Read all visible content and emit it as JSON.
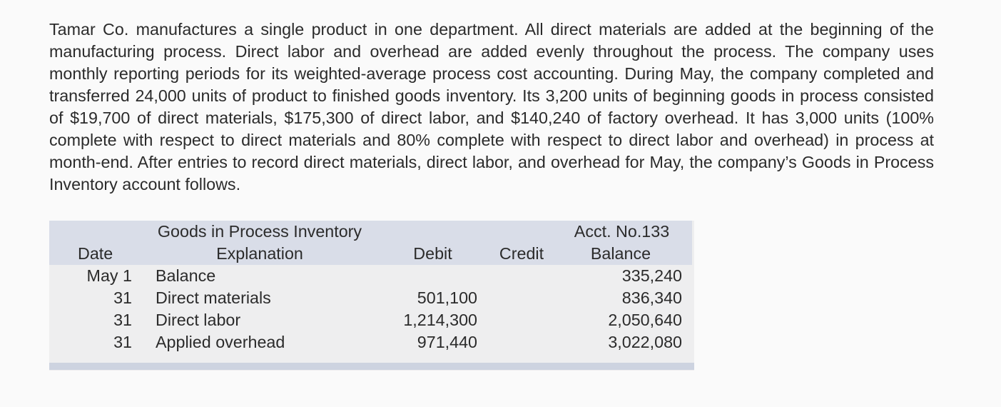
{
  "problem_text": "Tamar Co. manufactures a single product in one department. All direct materials are added at the beginning of the manufacturing process. Direct labor and overhead are added evenly throughout the process. The company uses monthly reporting periods for its weighted-average process cost accounting. During May, the company completed and transferred 24,000 units of product to finished goods inventory. Its 3,200 units of beginning goods in process consisted of $19,700 of direct materials, $175,300 of direct labor, and $140,240 of factory overhead. It has 3,000 units (100% complete with respect to direct materials and 80% complete with respect to direct labor and overhead) in process at month-end. After entries to record direct materials, direct labor, and overhead for May, the company’s Goods in Process Inventory account follows.",
  "ledger": {
    "account_title": "Goods in Process Inventory",
    "account_number": "Acct. No.133",
    "headers": {
      "date": "Date",
      "explanation": "Explanation",
      "debit": "Debit",
      "credit": "Credit",
      "balance": "Balance"
    },
    "rows": [
      {
        "date": "May 1",
        "explanation": "Balance",
        "debit": "",
        "credit": "",
        "balance": "335,240"
      },
      {
        "date": "31",
        "explanation": "Direct materials",
        "debit": "501,100",
        "credit": "",
        "balance": "836,340"
      },
      {
        "date": "31",
        "explanation": "Direct labor",
        "debit": "1,214,300",
        "credit": "",
        "balance": "2,050,640"
      },
      {
        "date": "31",
        "explanation": "Applied overhead",
        "debit": "971,440",
        "credit": "",
        "balance": "3,022,080"
      }
    ]
  }
}
